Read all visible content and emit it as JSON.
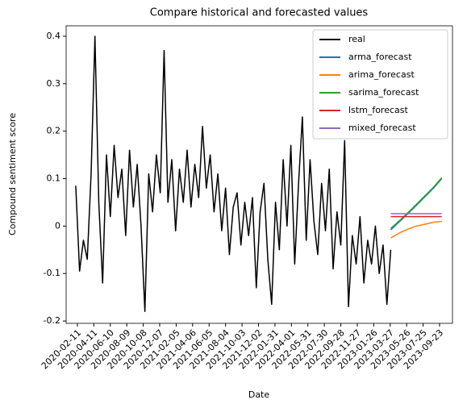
{
  "chart_data": {
    "type": "line",
    "title": "Compare historical and forecasted values",
    "xlabel": "Date",
    "ylabel": "Compound sentiment score",
    "xlim": [
      "2020-01-01",
      "2023-11-09"
    ],
    "xticks": [
      "2020-02-11",
      "2020-04-11",
      "2020-06-10",
      "2020-08-09",
      "2020-10-08",
      "2020-12-07",
      "2021-02-05",
      "2021-04-06",
      "2021-06-05",
      "2021-08-04",
      "2021-10-03",
      "2021-12-02",
      "2022-01-31",
      "2022-04-01",
      "2022-05-31",
      "2022-07-30",
      "2022-09-28",
      "2022-11-27",
      "2023-01-26",
      "2023-03-27",
      "2023-05-26",
      "2023-07-25",
      "2023-09-23"
    ],
    "ylim": [
      -0.205,
      0.422
    ],
    "yticks": [
      -0.2,
      -0.1,
      0.0,
      0.1,
      0.2,
      0.3,
      0.4
    ],
    "grid": false,
    "legend": "upper right",
    "series": [
      {
        "name": "real",
        "color": "#000000",
        "x": [
          "2020-02-05",
          "2020-02-19",
          "2020-03-04",
          "2020-03-18",
          "2020-04-01",
          "2020-04-15",
          "2020-04-29",
          "2020-05-13",
          "2020-05-27",
          "2020-06-10",
          "2020-06-24",
          "2020-07-08",
          "2020-07-22",
          "2020-08-05",
          "2020-08-19",
          "2020-09-02",
          "2020-09-16",
          "2020-09-30",
          "2020-10-14",
          "2020-10-28",
          "2020-11-11",
          "2020-11-25",
          "2020-12-09",
          "2020-12-23",
          "2021-01-06",
          "2021-01-20",
          "2021-02-03",
          "2021-02-17",
          "2021-03-03",
          "2021-03-17",
          "2021-03-31",
          "2021-04-14",
          "2021-04-28",
          "2021-05-12",
          "2021-05-26",
          "2021-06-09",
          "2021-06-23",
          "2021-07-07",
          "2021-07-21",
          "2021-08-04",
          "2021-08-18",
          "2021-09-01",
          "2021-09-15",
          "2021-09-29",
          "2021-10-13",
          "2021-10-27",
          "2021-11-10",
          "2021-11-24",
          "2021-12-08",
          "2021-12-22",
          "2022-01-05",
          "2022-01-19",
          "2022-02-02",
          "2022-02-16",
          "2022-03-02",
          "2022-03-16",
          "2022-03-30",
          "2022-04-13",
          "2022-04-27",
          "2022-05-11",
          "2022-05-25",
          "2022-06-08",
          "2022-06-22",
          "2022-07-06",
          "2022-07-20",
          "2022-08-03",
          "2022-08-17",
          "2022-08-31",
          "2022-09-14",
          "2022-09-28",
          "2022-10-12",
          "2022-10-26",
          "2022-11-09",
          "2022-11-23",
          "2022-12-07",
          "2022-12-21",
          "2023-01-04",
          "2023-01-18",
          "2023-02-01",
          "2023-02-15",
          "2023-03-01",
          "2023-03-15",
          "2023-03-29"
        ],
        "values": [
          0.085,
          -0.095,
          -0.03,
          -0.07,
          0.11,
          0.4,
          0.05,
          -0.12,
          0.15,
          0.02,
          0.17,
          0.06,
          0.12,
          -0.02,
          0.16,
          0.04,
          0.13,
          0.0,
          -0.18,
          0.11,
          0.03,
          0.15,
          0.07,
          0.37,
          0.05,
          0.14,
          -0.01,
          0.12,
          0.05,
          0.16,
          0.04,
          0.13,
          0.06,
          0.21,
          0.08,
          0.15,
          0.03,
          0.11,
          -0.01,
          0.08,
          -0.06,
          0.04,
          0.07,
          -0.04,
          0.05,
          -0.02,
          0.06,
          -0.13,
          0.03,
          0.09,
          -0.07,
          -0.165,
          0.05,
          -0.05,
          0.14,
          0.0,
          0.17,
          -0.08,
          0.09,
          0.23,
          -0.03,
          0.14,
          0.01,
          -0.06,
          0.09,
          -0.01,
          0.12,
          -0.09,
          0.03,
          -0.04,
          0.18,
          -0.17,
          -0.02,
          -0.08,
          0.02,
          -0.12,
          -0.03,
          -0.08,
          0.0,
          -0.1,
          -0.04,
          -0.165,
          -0.05
        ]
      },
      {
        "name": "arma_forecast",
        "color": "#1f77b4",
        "x": [
          "2023-03-29",
          "2023-05-01",
          "2023-06-01",
          "2023-07-01",
          "2023-08-01",
          "2023-09-01",
          "2023-10-01"
        ],
        "values": [
          -0.008,
          0.01,
          0.027,
          0.044,
          0.062,
          0.08,
          0.1
        ]
      },
      {
        "name": "arima_forecast",
        "color": "#ff7f0e",
        "x": [
          "2023-03-29",
          "2023-05-01",
          "2023-06-01",
          "2023-07-01",
          "2023-08-01",
          "2023-09-01",
          "2023-10-01"
        ],
        "values": [
          -0.025,
          -0.014,
          -0.006,
          0.0,
          0.004,
          0.008,
          0.01
        ]
      },
      {
        "name": "sarima_forecast",
        "color": "#2ca02c",
        "x": [
          "2023-03-29",
          "2023-05-01",
          "2023-06-01",
          "2023-07-01",
          "2023-08-01",
          "2023-09-01",
          "2023-10-01"
        ],
        "values": [
          -0.005,
          0.012,
          0.029,
          0.046,
          0.064,
          0.082,
          0.102
        ]
      },
      {
        "name": "lstm_forecast",
        "color": "#d62728",
        "x": [
          "2023-03-29",
          "2023-05-01",
          "2023-06-01",
          "2023-07-01",
          "2023-08-01",
          "2023-09-01",
          "2023-10-01"
        ],
        "values": [
          0.02,
          0.02,
          0.02,
          0.02,
          0.02,
          0.02,
          0.02
        ]
      },
      {
        "name": "mixed_forecast",
        "color": "#9467bd",
        "x": [
          "2023-03-29",
          "2023-05-01",
          "2023-06-01",
          "2023-07-01",
          "2023-08-01",
          "2023-09-01",
          "2023-10-01"
        ],
        "values": [
          0.026,
          0.026,
          0.026,
          0.026,
          0.026,
          0.026,
          0.026
        ]
      }
    ]
  }
}
